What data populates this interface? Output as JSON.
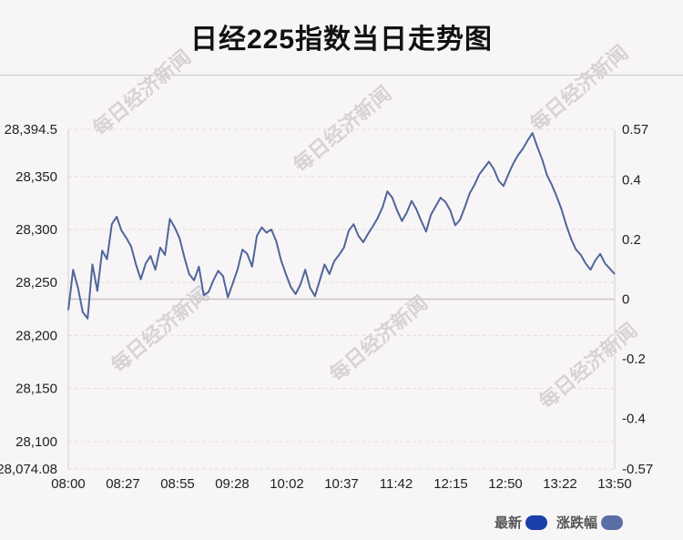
{
  "title": "日经225指数当日走势图",
  "watermark_text": "每日经济新闻",
  "legend": [
    {
      "label": "最新",
      "color": "#1b3fa8"
    },
    {
      "label": "涨跌幅",
      "color": "#5b6fa6"
    }
  ],
  "chart_data": {
    "type": "line",
    "y_left_ticks": [
      "28,394.5",
      "28,350",
      "28,300",
      "28,250",
      "28,200",
      "28,150",
      "28,100",
      "28,074.08"
    ],
    "y_left_values": [
      28394.5,
      28350,
      28300,
      28250,
      28200,
      28150,
      28100,
      28074.08
    ],
    "y_right_ticks": [
      "0.57",
      "0.4",
      "0.2",
      "0",
      "-0.2",
      "-0.4",
      "-0.57"
    ],
    "y_right_values": [
      0.57,
      0.4,
      0.2,
      0,
      -0.2,
      -0.4,
      -0.57
    ],
    "ylim": [
      28074.08,
      28394.5
    ],
    "x_ticks": [
      "08:00",
      "08:27",
      "08:55",
      "09:28",
      "10:02",
      "10:37",
      "11:42",
      "12:15",
      "12:50",
      "13:22",
      "13:50"
    ],
    "line_color": "#4f6699",
    "series": [
      {
        "values": [
          28224,
          28262,
          28245,
          28222,
          28216,
          28267,
          28242,
          28280,
          28272,
          28305,
          28312,
          28299,
          28292,
          28284,
          28267,
          28253,
          28268,
          28275,
          28262,
          28283,
          28276,
          28310,
          28302,
          28292,
          28274,
          28258,
          28252,
          28265,
          28238,
          28241,
          28252,
          28261,
          28256,
          28236,
          28249,
          28262,
          28281,
          28277,
          28265,
          28294,
          28302,
          28297,
          28300,
          28289,
          28271,
          28258,
          28246,
          28239,
          28248,
          28262,
          28245,
          28237,
          28252,
          28267,
          28258,
          28270,
          28276,
          28283,
          28299,
          28305,
          28294,
          28288,
          28296,
          28303,
          28311,
          28321,
          28336,
          28330,
          28318,
          28308,
          28316,
          28327,
          28319,
          28308,
          28298,
          28314,
          28322,
          28330,
          28326,
          28318,
          28304,
          28309,
          28321,
          28334,
          28342,
          28352,
          28358,
          28364,
          28357,
          28346,
          28341,
          28352,
          28362,
          28370,
          28376,
          28384,
          28391,
          28378,
          28366,
          28351,
          28342,
          28331,
          28319,
          28304,
          28291,
          28281,
          28276,
          28268,
          28262,
          28271,
          28277,
          28268,
          28263,
          28258
        ]
      }
    ]
  }
}
